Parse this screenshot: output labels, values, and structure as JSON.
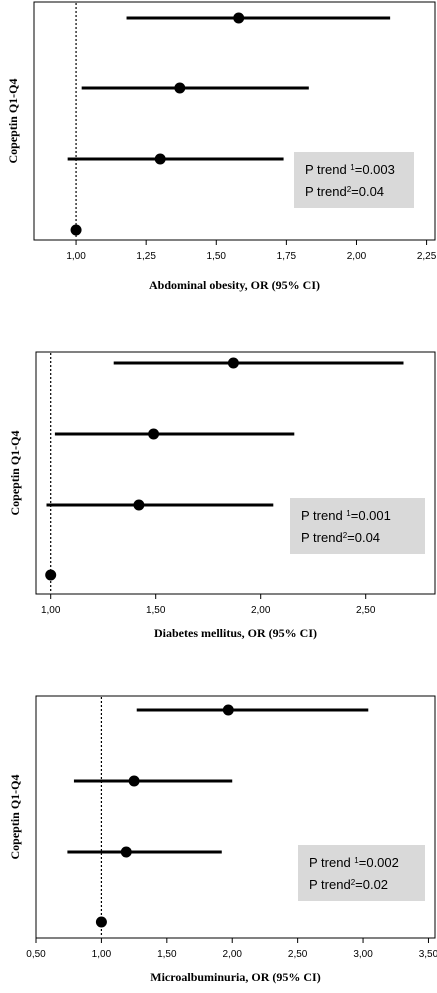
{
  "chart_data": [
    {
      "type": "forest",
      "ylabel": "Copeptin Q1-Q4",
      "xlabel": "Abdominal obesity, OR (95% CI)",
      "xlim": [
        0.85,
        2.28
      ],
      "xticks": [
        1.0,
        1.25,
        1.5,
        1.75,
        2.0,
        2.25
      ],
      "tick_labels": [
        "1,00",
        "1,25",
        "1,50",
        "1,75",
        "2,00",
        "2,25"
      ],
      "reference_line": 1.0,
      "points": [
        {
          "or": 1.58,
          "lo": 1.18,
          "hi": 2.12
        },
        {
          "or": 1.37,
          "lo": 1.02,
          "hi": 1.83
        },
        {
          "or": 1.3,
          "lo": 0.97,
          "hi": 1.74
        },
        {
          "or": 1.0,
          "lo": 1.0,
          "hi": 1.0
        }
      ],
      "annotation": {
        "line1_prefix": "P trend ",
        "line1_sup": "1",
        "line1_suffix": "=0.003",
        "line2_prefix": "P trend",
        "line2_sup": "2",
        "line2_suffix": "=0.04"
      }
    },
    {
      "type": "forest",
      "ylabel": "Copeptin Q1-Q4",
      "xlabel": "Diabetes mellitus, OR (95% CI)",
      "xlim": [
        0.93,
        2.83
      ],
      "xticks": [
        1.0,
        1.5,
        2.0,
        2.5
      ],
      "tick_labels": [
        "1,00",
        "1,50",
        "2,00",
        "2,50"
      ],
      "reference_line": 1.0,
      "points": [
        {
          "or": 1.87,
          "lo": 1.3,
          "hi": 2.68
        },
        {
          "or": 1.49,
          "lo": 1.02,
          "hi": 2.16
        },
        {
          "or": 1.42,
          "lo": 0.98,
          "hi": 2.06
        },
        {
          "or": 1.0,
          "lo": 1.0,
          "hi": 1.0
        }
      ],
      "annotation": {
        "line1_prefix": "P trend ",
        "line1_sup": "1",
        "line1_suffix": "=0.001",
        "line2_prefix": "P trend",
        "line2_sup": "2",
        "line2_suffix": "=0.04"
      }
    },
    {
      "type": "forest",
      "ylabel": "Copeptin Q1-Q4",
      "xlabel": "Microalbuminuria, OR (95% CI)",
      "xlim": [
        0.5,
        3.55
      ],
      "xticks": [
        0.5,
        1.0,
        1.5,
        2.0,
        2.5,
        3.0,
        3.5
      ],
      "tick_labels": [
        "0,50",
        "1,00",
        "1,50",
        "2,00",
        "2,50",
        "3,00",
        "3,50"
      ],
      "reference_line": 1.0,
      "points": [
        {
          "or": 1.97,
          "lo": 1.27,
          "hi": 3.04
        },
        {
          "or": 1.25,
          "lo": 0.79,
          "hi": 2.0
        },
        {
          "or": 1.19,
          "lo": 0.74,
          "hi": 1.92
        },
        {
          "or": 1.0,
          "lo": 1.0,
          "hi": 1.0
        }
      ],
      "annotation": {
        "line1_prefix": "P trend ",
        "line1_sup": "1",
        "line1_suffix": "=0.002",
        "line2_prefix": "P trend",
        "line2_sup": "2",
        "line2_suffix": "=0.02"
      }
    }
  ]
}
